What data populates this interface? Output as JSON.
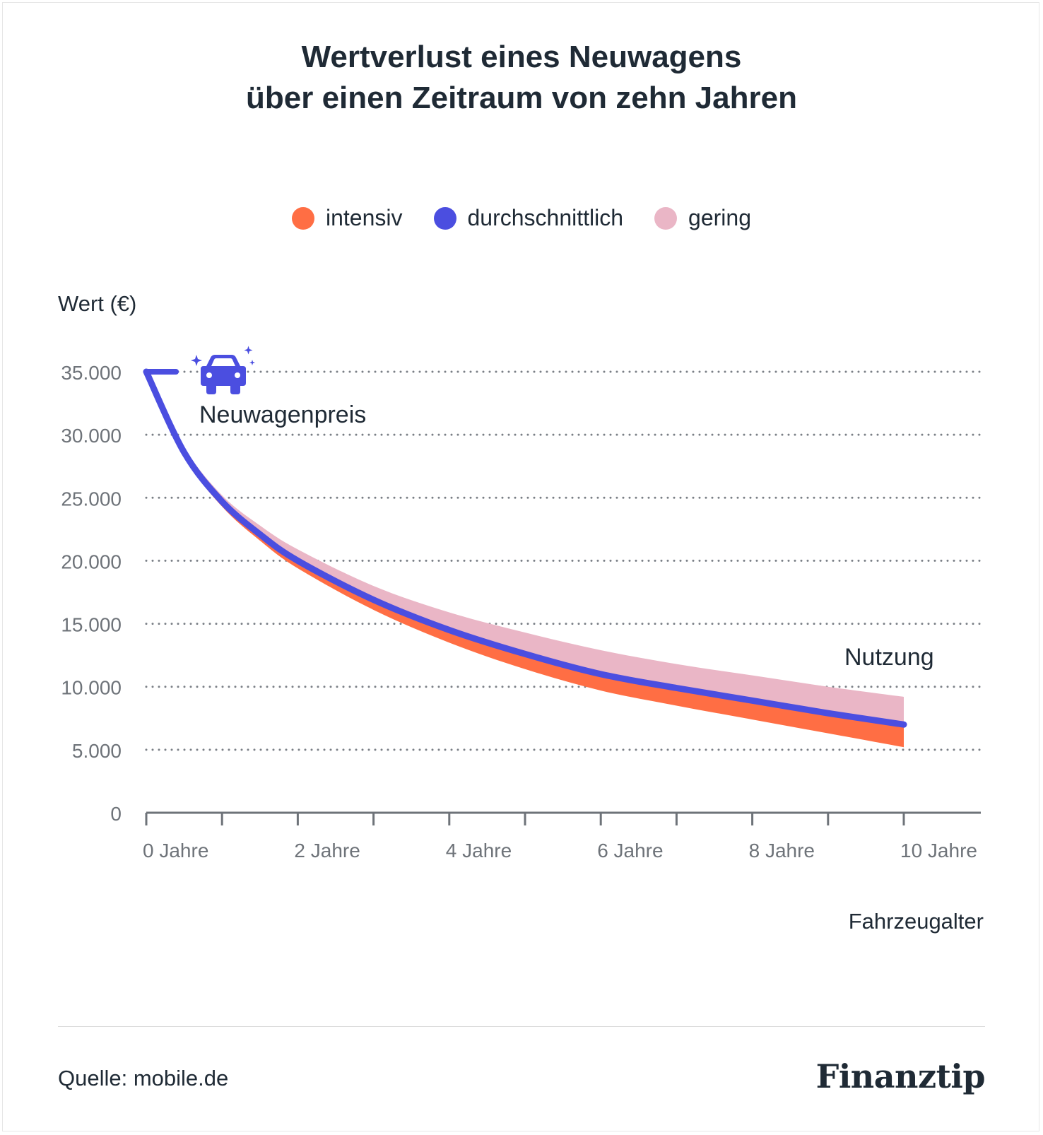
{
  "title_line1": "Wertverlust eines Neuwagens",
  "title_line2": "über einen Zeitraum von zehn Jahren",
  "legend": [
    {
      "label": "intensiv",
      "color": "#ff6e44"
    },
    {
      "label": "durchschnittlich",
      "color": "#4b4ee0"
    },
    {
      "label": "gering",
      "color": "#eab6c6"
    }
  ],
  "annotations": {
    "start": "Neuwagenpreis",
    "end": "Nutzung",
    "start_icon": "car-icon"
  },
  "source": "Quelle: mobile.de",
  "logo_text": "Finanztip",
  "chart_data": {
    "type": "area",
    "xlabel": "Fahrzeugalter",
    "ylabel": "Wert (€)",
    "xlim": [
      0,
      11
    ],
    "ylim": [
      0,
      35000
    ],
    "yticks": [
      0,
      5000,
      10000,
      15000,
      20000,
      25000,
      30000,
      35000
    ],
    "ytick_labels": [
      "0",
      "5.000",
      "10.000",
      "15.000",
      "20.000",
      "25.000",
      "30.000",
      "35.000"
    ],
    "xticks": [
      0,
      1,
      2,
      3,
      4,
      5,
      6,
      7,
      8,
      9,
      10,
      11
    ],
    "xtick_labels": [
      {
        "x": 0,
        "label": "0 Jahre"
      },
      {
        "x": 2,
        "label": "2 Jahre"
      },
      {
        "x": 4,
        "label": "4 Jahre"
      },
      {
        "x": 6,
        "label": "6 Jahre"
      },
      {
        "x": 8,
        "label": "8 Jahre"
      },
      {
        "x": 10,
        "label": "10 Jahre"
      }
    ],
    "grid": "horizontal dotted",
    "start_value": 35000,
    "x": [
      0,
      0.5,
      1,
      1.5,
      2,
      3,
      4,
      5,
      6,
      7,
      8,
      9,
      10
    ],
    "series": [
      {
        "name": "gering",
        "color": "#eab6c6",
        "values": [
          35000,
          29000,
          25200,
          22800,
          20900,
          18000,
          15900,
          14300,
          12900,
          11800,
          10900,
          10000,
          9200
        ]
      },
      {
        "name": "durchschnittlich",
        "color": "#4b4ee0",
        "values": [
          35000,
          28600,
          24700,
          22100,
          20000,
          16900,
          14500,
          12600,
          11000,
          9900,
          8900,
          7900,
          7000
        ]
      },
      {
        "name": "intensiv",
        "color": "#ff6e44",
        "values": [
          35000,
          28300,
          24300,
          21600,
          19400,
          16100,
          13500,
          11400,
          9700,
          8500,
          7400,
          6300,
          5200
        ]
      }
    ]
  }
}
